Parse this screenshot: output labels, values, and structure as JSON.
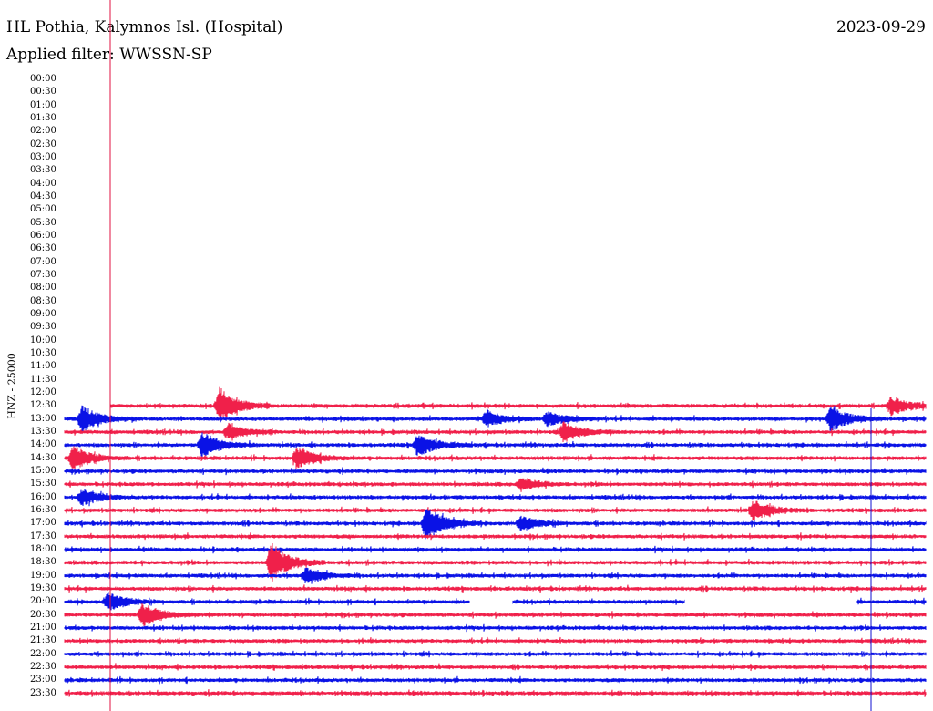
{
  "header": {
    "station": "HL Pothia, Kalymnos Isl. (Hospital)",
    "date": "2023-09-29",
    "filter": "Applied filter: WWSSN-SP",
    "channel": "HNZ - 25000"
  },
  "colors": {
    "red": "#f0204a",
    "blue": "#0a12e6",
    "marker_red": "#e01040",
    "marker_blue": "#1010d0"
  },
  "chart_data": {
    "type": "line",
    "title": "HL Pothia, Kalymnos Isl. (Hospital)",
    "subtitle": "Applied filter: WWSSN-SP",
    "ylabel": "HNZ - 25000",
    "xlabel": "",
    "time_labels": [
      "00:00",
      "00:30",
      "01:00",
      "01:30",
      "02:00",
      "02:30",
      "03:00",
      "03:30",
      "04:00",
      "04:30",
      "05:00",
      "05:30",
      "06:00",
      "06:30",
      "07:00",
      "07:30",
      "08:00",
      "08:30",
      "09:00",
      "09:30",
      "10:00",
      "10:30",
      "11:00",
      "11:30",
      "12:00",
      "12:30",
      "13:00",
      "13:30",
      "14:00",
      "14:30",
      "15:00",
      "15:30",
      "16:00",
      "16:30",
      "17:00",
      "17:30",
      "18:00",
      "18:30",
      "19:00",
      "19:30",
      "20:00",
      "20:30",
      "21:00",
      "21:30",
      "22:00",
      "22:30",
      "23:00",
      "23:30"
    ],
    "row_minutes": 30,
    "data_start_row": "12:30",
    "series_colors_alternate": [
      "red",
      "blue"
    ],
    "events": [
      {
        "row": "12:30",
        "at": 0.18,
        "amp": 1.6
      },
      {
        "row": "12:30",
        "at": 0.96,
        "amp": 0.9
      },
      {
        "row": "13:00",
        "at": 0.02,
        "amp": 1.3
      },
      {
        "row": "13:00",
        "at": 0.49,
        "amp": 0.8
      },
      {
        "row": "13:00",
        "at": 0.56,
        "amp": 0.7
      },
      {
        "row": "13:00",
        "at": 0.89,
        "amp": 1.2
      },
      {
        "row": "13:30",
        "at": 0.19,
        "amp": 0.8
      },
      {
        "row": "13:30",
        "at": 0.58,
        "amp": 1.0
      },
      {
        "row": "14:00",
        "at": 0.16,
        "amp": 1.2
      },
      {
        "row": "14:00",
        "at": 0.41,
        "amp": 1.1
      },
      {
        "row": "14:30",
        "at": 0.01,
        "amp": 1.2
      },
      {
        "row": "14:30",
        "at": 0.27,
        "amp": 1.1
      },
      {
        "row": "15:30",
        "at": 0.53,
        "amp": 0.6
      },
      {
        "row": "16:00",
        "at": 0.02,
        "amp": 0.8
      },
      {
        "row": "16:30",
        "at": 0.8,
        "amp": 1.0
      },
      {
        "row": "17:00",
        "at": 0.42,
        "amp": 1.8
      },
      {
        "row": "17:00",
        "at": 0.53,
        "amp": 0.7
      },
      {
        "row": "18:30",
        "at": 0.24,
        "amp": 1.9
      },
      {
        "row": "19:00",
        "at": 0.28,
        "amp": 0.8
      },
      {
        "row": "20:00",
        "at": 0.05,
        "amp": 0.9
      },
      {
        "row": "20:30",
        "at": 0.09,
        "amp": 1.1
      }
    ],
    "gaps": [
      {
        "row": "20:00",
        "from": 0.47,
        "to": 0.52
      },
      {
        "row": "20:00",
        "from": 0.72,
        "to": 0.92
      }
    ],
    "markers": [
      {
        "color": "red",
        "at_row": "12:30",
        "position": "line start"
      },
      {
        "color": "blue",
        "at_row": "13:00",
        "position": "near right edge"
      }
    ]
  }
}
